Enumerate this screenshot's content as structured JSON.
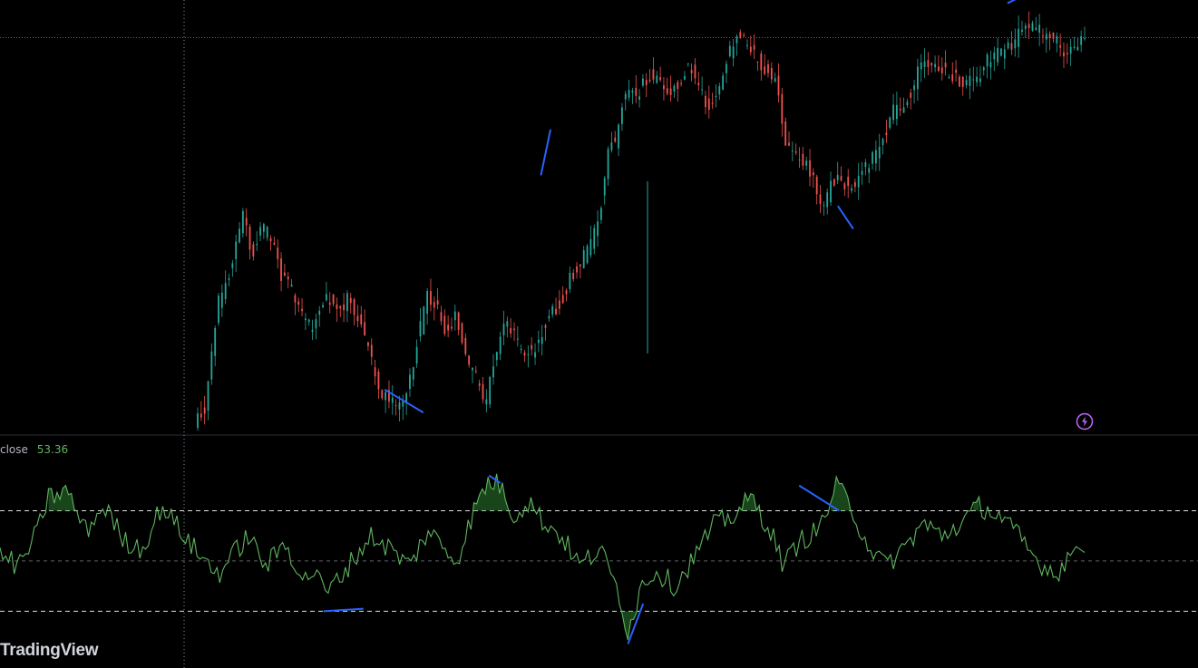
{
  "indicator": {
    "source": "close",
    "value": "53.36"
  },
  "watermark": "TradingView",
  "icons": {
    "alert": "lightning-bolt-icon"
  },
  "colors": {
    "background": "#000000",
    "candle_up": "#26a69a",
    "candle_down": "#ef5350",
    "rsi_line": "#5fb55f",
    "rsi_fill": "#2e7d32",
    "divergence": "#2962ff",
    "price_line": "#b2461f",
    "band": "#e0e0e0",
    "alert": "#c069ff"
  },
  "chart_data": [
    {
      "type": "candlestick",
      "pane": "price",
      "candle_count": 256,
      "ylim": [
        0,
        100
      ],
      "anchors": [
        [
          0,
          2
        ],
        [
          5,
          4
        ],
        [
          12,
          32
        ],
        [
          20,
          44
        ],
        [
          25,
          56
        ],
        [
          30,
          46
        ],
        [
          35,
          52
        ],
        [
          40,
          50
        ],
        [
          45,
          40
        ],
        [
          50,
          36
        ],
        [
          55,
          30
        ],
        [
          60,
          26
        ],
        [
          65,
          31
        ],
        [
          70,
          34
        ],
        [
          75,
          30
        ],
        [
          80,
          34
        ],
        [
          85,
          27
        ],
        [
          90,
          22
        ],
        [
          95,
          9
        ],
        [
          100,
          8
        ],
        [
          105,
          5
        ],
        [
          110,
          10
        ],
        [
          115,
          22
        ],
        [
          120,
          34
        ],
        [
          125,
          32
        ],
        [
          130,
          24
        ],
        [
          135,
          30
        ],
        [
          140,
          18
        ],
        [
          145,
          14
        ],
        [
          150,
          6
        ],
        [
          155,
          17
        ],
        [
          160,
          27
        ],
        [
          165,
          24
        ],
        [
          170,
          20
        ],
        [
          175,
          20
        ],
        [
          180,
          26
        ],
        [
          185,
          30
        ],
        [
          190,
          34
        ],
        [
          195,
          40
        ],
        [
          200,
          44
        ],
        [
          205,
          48
        ],
        [
          210,
          58
        ],
        [
          215,
          75
        ],
        [
          217,
          72
        ],
        [
          220,
          84
        ],
        [
          225,
          87
        ],
        [
          230,
          88
        ],
        [
          235,
          92
        ],
        [
          240,
          91
        ],
        [
          245,
          88
        ],
        [
          250,
          90
        ],
        [
          255,
          95
        ],
        [
          260,
          91
        ],
        [
          265,
          84
        ],
        [
          270,
          86
        ],
        [
          275,
          96
        ],
        [
          280,
          102
        ],
        [
          285,
          100
        ],
        [
          290,
          97
        ],
        [
          295,
          93
        ],
        [
          300,
          92
        ],
        [
          305,
          74
        ],
        [
          310,
          72
        ],
        [
          315,
          70
        ],
        [
          320,
          64
        ],
        [
          325,
          58
        ],
        [
          330,
          65
        ],
        [
          335,
          64
        ],
        [
          340,
          63
        ],
        [
          345,
          67
        ],
        [
          350,
          70
        ],
        [
          355,
          74
        ],
        [
          360,
          82
        ],
        [
          365,
          84
        ],
        [
          370,
          88
        ],
        [
          375,
          94
        ],
        [
          380,
          96
        ],
        [
          385,
          94
        ],
        [
          390,
          92
        ],
        [
          395,
          91
        ],
        [
          400,
          90
        ],
        [
          405,
          92
        ],
        [
          410,
          96
        ],
        [
          415,
          98
        ],
        [
          420,
          99
        ],
        [
          425,
          102
        ],
        [
          430,
          106
        ],
        [
          435,
          104
        ],
        [
          440,
          103
        ],
        [
          445,
          101
        ],
        [
          450,
          97
        ],
        [
          455,
          100
        ],
        [
          460,
          103
        ]
      ],
      "divergence_lines": [
        {
          "from": [
            97,
            10
          ],
          "to": [
            117,
            4
          ]
        },
        {
          "from": [
            178,
            66
          ],
          "to": [
            183,
            78
          ]
        },
        {
          "from": [
            332,
            58
          ],
          "to": [
            340,
            52
          ]
        },
        {
          "from": [
            420,
            111
          ],
          "to": [
            440,
            116
          ]
        }
      ],
      "price_line": 102
    },
    {
      "type": "line",
      "pane": "indicator",
      "series": [
        {
          "name": "close",
          "last": 53.36
        }
      ],
      "ylim": [
        15,
        90
      ],
      "bands": [
        70,
        50,
        30
      ],
      "anchors": [
        [
          0,
          52
        ],
        [
          10,
          48
        ],
        [
          20,
          62
        ],
        [
          25,
          75
        ],
        [
          35,
          78
        ],
        [
          45,
          62
        ],
        [
          55,
          72
        ],
        [
          65,
          58
        ],
        [
          75,
          55
        ],
        [
          85,
          72
        ],
        [
          95,
          62
        ],
        [
          105,
          52
        ],
        [
          115,
          45
        ],
        [
          130,
          60
        ],
        [
          140,
          48
        ],
        [
          150,
          57
        ],
        [
          160,
          42
        ],
        [
          167,
          48
        ],
        [
          170,
          36
        ],
        [
          177,
          42
        ],
        [
          185,
          50
        ],
        [
          195,
          60
        ],
        [
          205,
          55
        ],
        [
          215,
          48
        ],
        [
          225,
          62
        ],
        [
          240,
          50
        ],
        [
          250,
          72
        ],
        [
          257,
          82
        ],
        [
          263,
          80
        ],
        [
          270,
          68
        ],
        [
          278,
          74
        ],
        [
          285,
          66
        ],
        [
          295,
          60
        ],
        [
          305,
          48
        ],
        [
          315,
          55
        ],
        [
          325,
          38
        ],
        [
          330,
          22
        ],
        [
          338,
          42
        ],
        [
          345,
          46
        ],
        [
          355,
          40
        ],
        [
          365,
          52
        ],
        [
          375,
          64
        ],
        [
          385,
          68
        ],
        [
          395,
          75
        ],
        [
          405,
          62
        ],
        [
          412,
          48
        ],
        [
          420,
          58
        ],
        [
          430,
          62
        ],
        [
          440,
          80
        ],
        [
          447,
          72
        ],
        [
          455,
          58
        ],
        [
          465,
          48
        ],
        [
          475,
          55
        ],
        [
          485,
          65
        ],
        [
          495,
          60
        ],
        [
          505,
          65
        ],
        [
          515,
          72
        ],
        [
          525,
          68
        ],
        [
          535,
          60
        ],
        [
          545,
          50
        ],
        [
          555,
          45
        ],
        [
          560,
          50
        ],
        [
          565,
          56
        ],
        [
          570,
          53.36
        ]
      ],
      "divergence_lines": [
        {
          "from": [
            170,
            30
          ],
          "to": [
            191,
            31
          ]
        },
        {
          "from": [
            257,
            84
          ],
          "to": [
            263,
            81
          ]
        },
        {
          "from": [
            330,
            17
          ],
          "to": [
            338,
            33
          ]
        },
        {
          "from": [
            420,
            80
          ],
          "to": [
            441,
            70
          ]
        }
      ]
    }
  ]
}
